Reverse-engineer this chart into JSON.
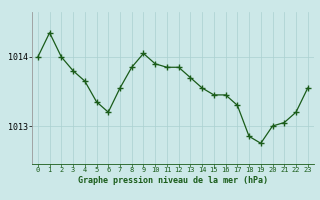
{
  "x": [
    0,
    1,
    2,
    3,
    4,
    5,
    6,
    7,
    8,
    9,
    10,
    11,
    12,
    13,
    14,
    15,
    16,
    17,
    18,
    19,
    20,
    21,
    22,
    23
  ],
  "y": [
    1014.0,
    1014.35,
    1014.0,
    1013.8,
    1013.65,
    1013.35,
    1013.2,
    1013.55,
    1013.85,
    1014.05,
    1013.9,
    1013.85,
    1013.85,
    1013.7,
    1013.55,
    1013.45,
    1013.45,
    1013.3,
    1012.85,
    1012.75,
    1013.0,
    1013.05,
    1013.2,
    1013.55
  ],
  "line_color": "#1a5c1a",
  "marker_color": "#1a5c1a",
  "bg_color": "#cce8e8",
  "grid_color": "#aad0d0",
  "xlabel": "Graphe pression niveau de la mer (hPa)",
  "xlabel_color": "#1a5c1a",
  "ytick_labels": [
    "1013",
    "1014"
  ],
  "ytick_values": [
    1013.0,
    1014.0
  ],
  "ylim": [
    1012.45,
    1014.65
  ],
  "xlim": [
    -0.5,
    23.5
  ],
  "left_spine_color": "#999999",
  "bottom_spine_color": "#1a5c1a"
}
